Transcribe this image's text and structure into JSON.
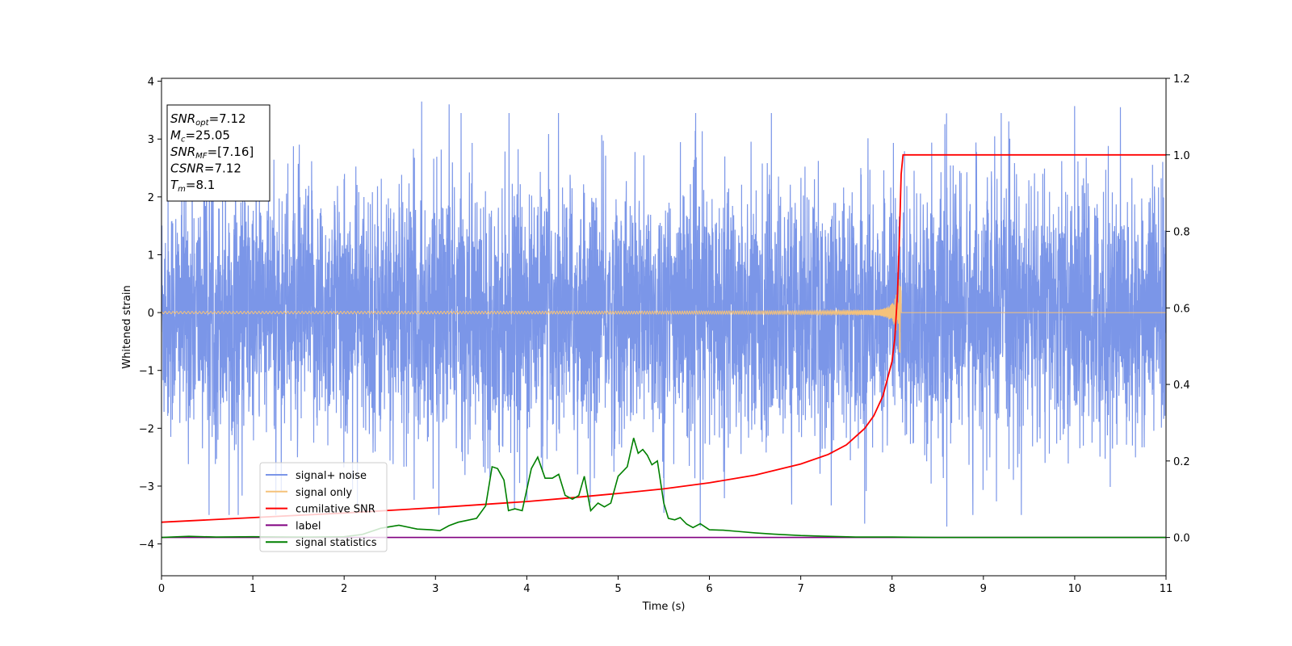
{
  "chart_data": {
    "type": "line",
    "title": "",
    "xlabel": "Time (s)",
    "ylabel": "Whitened strain",
    "y2label": "",
    "xlim": [
      0,
      11
    ],
    "ylim": [
      -4.55,
      4.05
    ],
    "y2lim": [
      -0.1,
      1.2
    ],
    "x_ticks": [
      0,
      1,
      2,
      3,
      4,
      5,
      6,
      7,
      8,
      9,
      10,
      11
    ],
    "y_ticks": [
      -4,
      -3,
      -2,
      -1,
      0,
      1,
      2,
      3,
      4
    ],
    "y2_ticks": [
      0.0,
      0.2,
      0.4,
      0.6,
      0.8,
      1.0,
      1.2
    ],
    "grid": false,
    "legend_position": "lower-left",
    "colors": {
      "signal_noise": "#7b96e8",
      "signal_only": "#f5c27a",
      "cumulative_snr": "#ff0000",
      "label": "#800080",
      "signal_statistics": "#008000"
    },
    "info_box": {
      "position": "top-left",
      "lines": [
        {
          "base": "SNR",
          "sub": "opt",
          "value": "=7.12"
        },
        {
          "base": "M",
          "sub": "c",
          "value": "=25.05"
        },
        {
          "base": "SNR",
          "sub": "MF",
          "value": "=[7.16]"
        },
        {
          "base": "CSNR",
          "sub": "",
          "value": "=7.12"
        },
        {
          "base": "T",
          "sub": "m",
          "value": "=8.1"
        }
      ]
    },
    "series": [
      {
        "name": "signal+ noise",
        "axis": "left",
        "description_values": {
          "x_range": [
            0,
            11
          ],
          "typical_amplitude": 1.5,
          "peak_max": 3.65,
          "peak_min": -3.72,
          "notable_peaks": [
            [
              2.85,
              3.65
            ],
            [
              3.15,
              3.6
            ],
            [
              5.9,
              -3.7
            ],
            [
              7.7,
              -3.65
            ],
            [
              8.6,
              -3.7
            ],
            [
              10.0,
              3.57
            ],
            [
              10.5,
              3.55
            ]
          ]
        }
      },
      {
        "name": "signal only",
        "axis": "left",
        "description_values": {
          "chirp_start_x": 0,
          "merger_x": 8.1,
          "start_amplitude": 0.02,
          "peak_amplitude": 0.7,
          "after_merger_value": 0
        }
      },
      {
        "name": "cumilative SNR",
        "axis": "right",
        "x": [
          0,
          1,
          2,
          3,
          4,
          4.5,
          5,
          5.5,
          6,
          6.5,
          7,
          7.3,
          7.5,
          7.7,
          7.8,
          7.9,
          8.0,
          8.03,
          8.06,
          8.08,
          8.1,
          8.12,
          8.2,
          9,
          10,
          11
        ],
        "y": [
          0.04,
          0.052,
          0.064,
          0.078,
          0.094,
          0.104,
          0.115,
          0.127,
          0.143,
          0.163,
          0.192,
          0.217,
          0.242,
          0.285,
          0.318,
          0.37,
          0.46,
          0.52,
          0.64,
          0.78,
          0.95,
          1.0,
          1.0,
          1.0,
          1.0,
          1.0
        ]
      },
      {
        "name": "label",
        "axis": "right",
        "x": [
          0,
          11
        ],
        "y": [
          0,
          0
        ]
      },
      {
        "name": "signal statistics",
        "axis": "right",
        "x": [
          0,
          0.3,
          0.6,
          1.0,
          1.5,
          2.0,
          2.2,
          2.4,
          2.6,
          2.8,
          2.95,
          3.05,
          3.15,
          3.25,
          3.35,
          3.45,
          3.55,
          3.62,
          3.68,
          3.75,
          3.8,
          3.87,
          3.95,
          4.05,
          4.12,
          4.2,
          4.28,
          4.35,
          4.42,
          4.5,
          4.57,
          4.63,
          4.7,
          4.78,
          4.85,
          4.92,
          5.0,
          5.1,
          5.17,
          5.22,
          5.27,
          5.32,
          5.37,
          5.43,
          5.5,
          5.55,
          5.62,
          5.68,
          5.75,
          5.82,
          5.9,
          6.0,
          6.15,
          6.3,
          6.5,
          6.7,
          7.0,
          7.3,
          7.6,
          8.0,
          8.5,
          9.0,
          10.0,
          11.0
        ],
        "y": [
          0.0,
          0.003,
          0.001,
          0.002,
          0.001,
          0.002,
          0.008,
          0.024,
          0.032,
          0.022,
          0.02,
          0.018,
          0.031,
          0.04,
          0.045,
          0.05,
          0.083,
          0.185,
          0.18,
          0.15,
          0.07,
          0.075,
          0.07,
          0.18,
          0.21,
          0.155,
          0.155,
          0.165,
          0.11,
          0.1,
          0.11,
          0.16,
          0.07,
          0.09,
          0.08,
          0.09,
          0.16,
          0.185,
          0.26,
          0.22,
          0.23,
          0.215,
          0.19,
          0.2,
          0.09,
          0.05,
          0.046,
          0.052,
          0.035,
          0.026,
          0.036,
          0.02,
          0.019,
          0.016,
          0.012,
          0.009,
          0.005,
          0.003,
          0.001,
          0.001,
          0.0,
          0.0,
          0.0,
          0.0
        ]
      }
    ]
  }
}
